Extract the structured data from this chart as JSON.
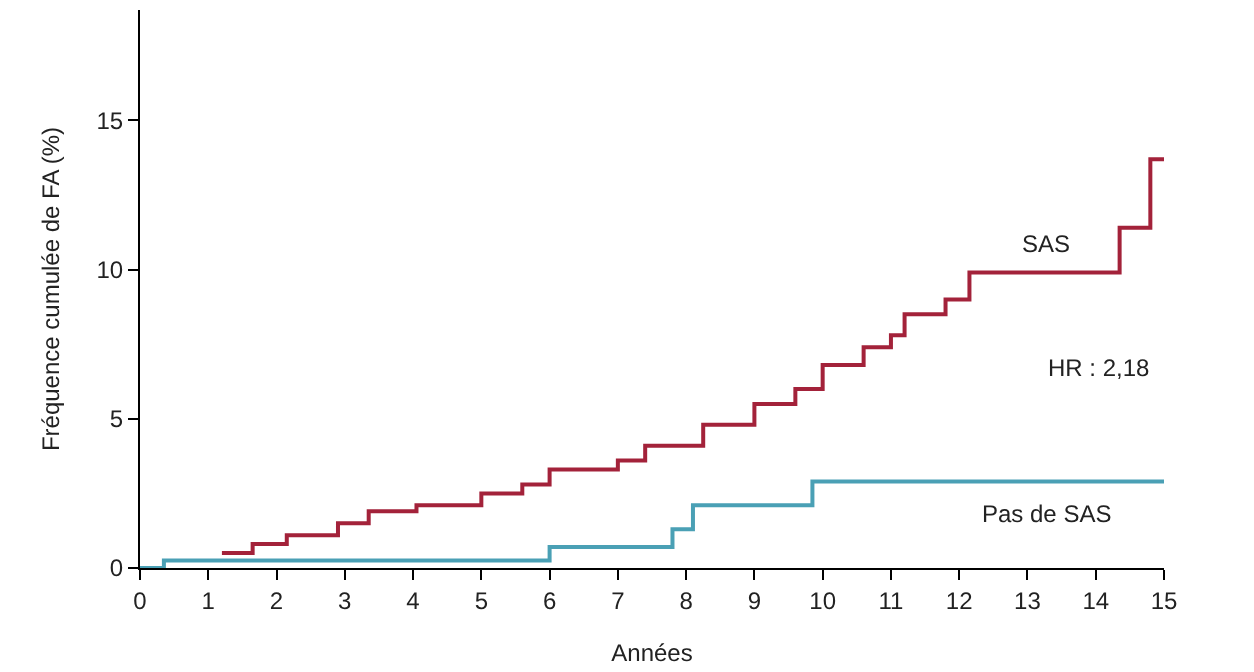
{
  "chart_data": {
    "type": "step",
    "xlabel": "Années",
    "ylabel": "Fréquence cumulée de FA (%)",
    "xlim": [
      0,
      15
    ],
    "xticks": [
      0,
      1,
      2,
      3,
      4,
      5,
      6,
      7,
      8,
      9,
      10,
      11,
      12,
      13,
      14,
      15
    ],
    "ylim": [
      0,
      18.7
    ],
    "yticks": [
      0,
      5,
      10,
      15
    ],
    "legend": false,
    "annotations": [
      "HR : 2,18"
    ],
    "series": [
      {
        "name": "SAS",
        "color": "#a3223a",
        "x": [
          1.2,
          1.65,
          2.15,
          2.9,
          3.35,
          4.05,
          5.0,
          5.6,
          6.0,
          7.0,
          7.4,
          8.25,
          9.0,
          9.6,
          10.0,
          10.6,
          11.0,
          11.2,
          11.8,
          12.15,
          14.35,
          14.8,
          15.0
        ],
        "values": [
          0.5,
          0.8,
          1.1,
          1.5,
          1.9,
          2.1,
          2.5,
          2.8,
          3.3,
          3.6,
          4.1,
          4.8,
          5.5,
          6.0,
          6.8,
          7.4,
          7.8,
          8.5,
          9.0,
          9.9,
          11.4,
          13.7,
          13.7
        ]
      },
      {
        "name": "Pas de SAS",
        "color": "#4aa0b5",
        "x": [
          0,
          0.35,
          6.0,
          7.8,
          8.1,
          9.85,
          15.0
        ],
        "values": [
          0,
          0.25,
          0.7,
          1.3,
          2.1,
          2.9,
          2.9
        ]
      }
    ]
  }
}
